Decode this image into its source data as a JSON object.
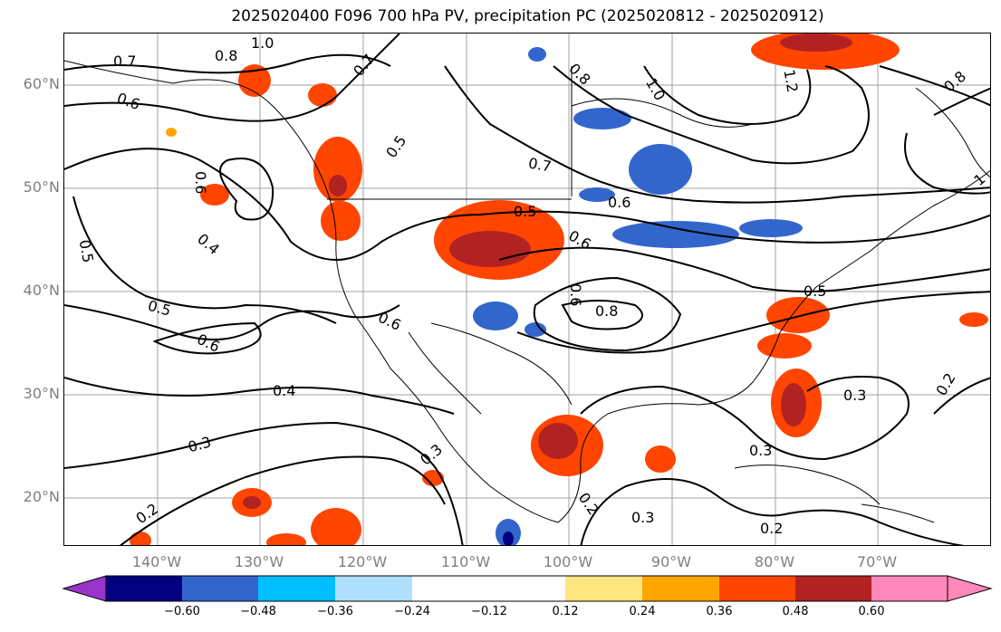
{
  "title": "2025020400 F096 700 hPa PV, precipitation PC (2025020812 - 2025020912)",
  "lat_labels": [
    "60°N",
    "50°N",
    "40°N",
    "30°N",
    "20°N"
  ],
  "lon_labels": [
    "140°W",
    "130°W",
    "120°W",
    "110°W",
    "100°W",
    "90°W",
    "80°W",
    "70°W"
  ],
  "colorbar": {
    "ticks": [
      "−0.60",
      "−0.48",
      "−0.36",
      "−0.24",
      "−0.12",
      "0.12",
      "0.24",
      "0.36",
      "0.48",
      "0.60"
    ],
    "colors": [
      "#9933cc",
      "#000080",
      "#3366cc",
      "#00bfff",
      "#b0e0ff",
      "#ffffff",
      "#ffe680",
      "#ffa500",
      "#ff4500",
      "#b22222",
      "#ff88bb"
    ]
  },
  "contour_labels": [
    "1.0",
    "0.7",
    "0.8",
    "0.7",
    "0.6",
    "0.5",
    "0.6",
    "0.4",
    "0.5",
    "0.5",
    "0.6",
    "0.5",
    "0.6",
    "0.7",
    "0.6",
    "0.5",
    "0.8",
    "0.6",
    "0.6",
    "0.4",
    "0.3",
    "0.3",
    "0.2",
    "0.2",
    "0.3",
    "0.3",
    "0.3",
    "0.2",
    "0.2",
    "0.8",
    "1.0",
    "0.8",
    "1.2",
    "1"
  ]
}
